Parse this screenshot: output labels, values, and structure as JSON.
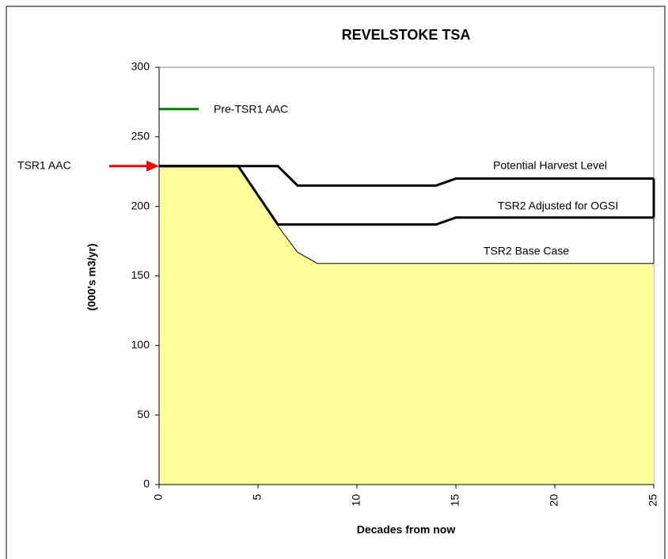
{
  "chart_data": {
    "type": "area",
    "title": "REVELSTOKE TSA",
    "x_label": "Decades from now",
    "y_label": "(000's m3/yr)",
    "xlim": [
      0,
      25
    ],
    "xticks": [
      0,
      5,
      10,
      15,
      20,
      25
    ],
    "ylim": [
      0,
      300
    ],
    "yticks": [
      0,
      50,
      100,
      150,
      200,
      250,
      300
    ],
    "grid": false,
    "series": [
      {
        "name": "TSR2 Base Case",
        "color": "#000000",
        "fill": "#ffff99",
        "area": true,
        "x": [
          0,
          4,
          6,
          7,
          8,
          25
        ],
        "values": [
          229,
          229,
          186,
          167,
          159,
          159
        ]
      },
      {
        "name": "TSR2 Adjusted for OGSI",
        "color": "#000000",
        "x": [
          0,
          4,
          6,
          14,
          15,
          25
        ],
        "values": [
          229,
          229,
          187,
          187,
          192,
          192
        ]
      },
      {
        "name": "Potential Harvest Level",
        "color": "#000000",
        "x": [
          0,
          4,
          6,
          7,
          14,
          15,
          25
        ],
        "values": [
          229,
          229,
          229,
          215,
          215,
          220,
          220
        ]
      },
      {
        "name": "Pre-TSR1 AAC",
        "color": "#008000",
        "x": [
          0,
          2
        ],
        "values": [
          270,
          270
        ]
      }
    ],
    "markers": [
      {
        "label": "TSR1 AAC",
        "value": 229,
        "color": "#ff0000"
      }
    ]
  }
}
